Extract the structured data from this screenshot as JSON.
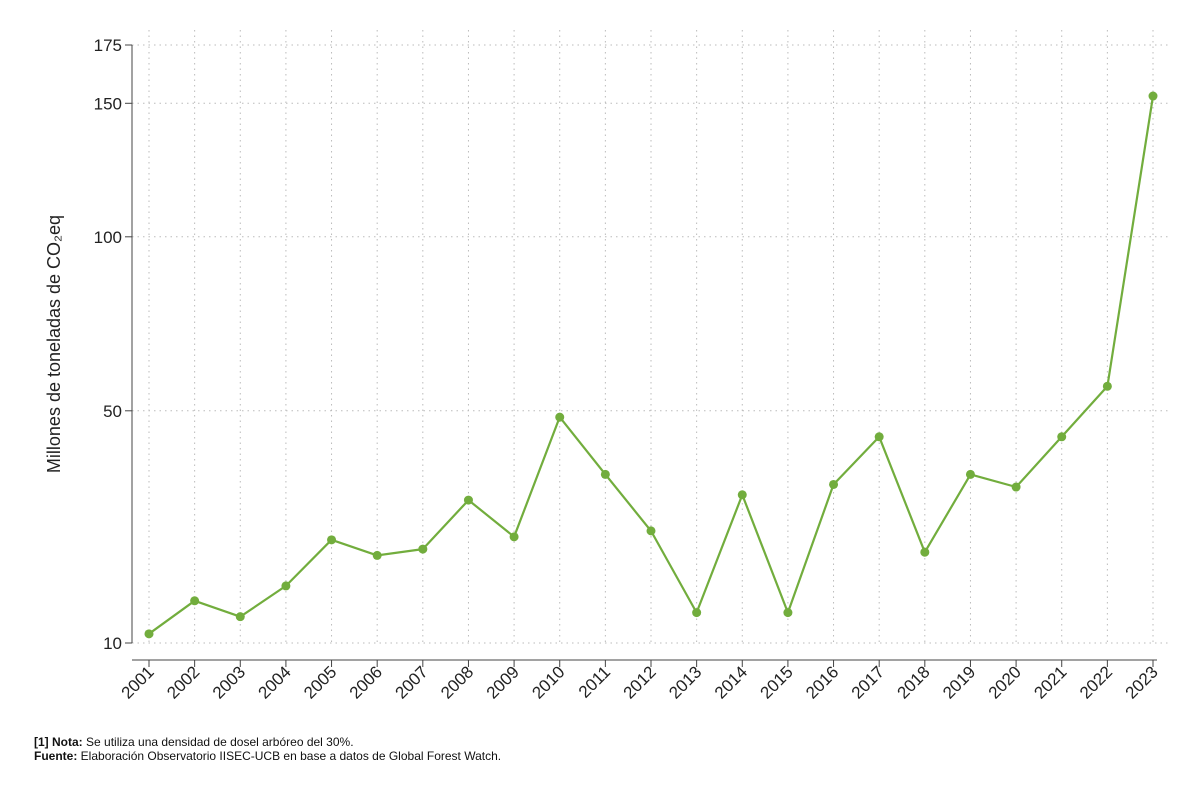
{
  "chart_data": {
    "type": "line",
    "title": "",
    "xlabel": "",
    "ylabel": "Millones de toneladas de CO₂eq",
    "x": [
      "2001",
      "2002",
      "2003",
      "2004",
      "2005",
      "2006",
      "2007",
      "2008",
      "2009",
      "2010",
      "2011",
      "2012",
      "2013",
      "2014",
      "2015",
      "2016",
      "2017",
      "2018",
      "2019",
      "2020",
      "2021",
      "2022",
      "2023"
    ],
    "series": [
      {
        "values": [
          11,
          15,
          13,
          17,
          24,
          21.5,
          22.5,
          31,
          24.5,
          48.5,
          36,
          25.5,
          13.5,
          32,
          13.5,
          34,
          44,
          22,
          36,
          33.5,
          44,
          56,
          153
        ]
      }
    ],
    "y_ticks": [
      10,
      50,
      100,
      150,
      175
    ],
    "y_tick_labels": [
      "10",
      "50",
      "100",
      "150",
      "175"
    ],
    "ylim": [
      10,
      175
    ],
    "y_scale": "square-root",
    "grid": true,
    "line_color": "#72ad3d"
  },
  "notes": {
    "nota_label": "[1] Nota:",
    "nota_text": " Se utiliza una densidad de dosel arbóreo del 30%.",
    "fuente_label": "Fuente:",
    "fuente_text": " Elaboración Observatorio IISEC-UCB en base a datos de Global Forest Watch."
  }
}
